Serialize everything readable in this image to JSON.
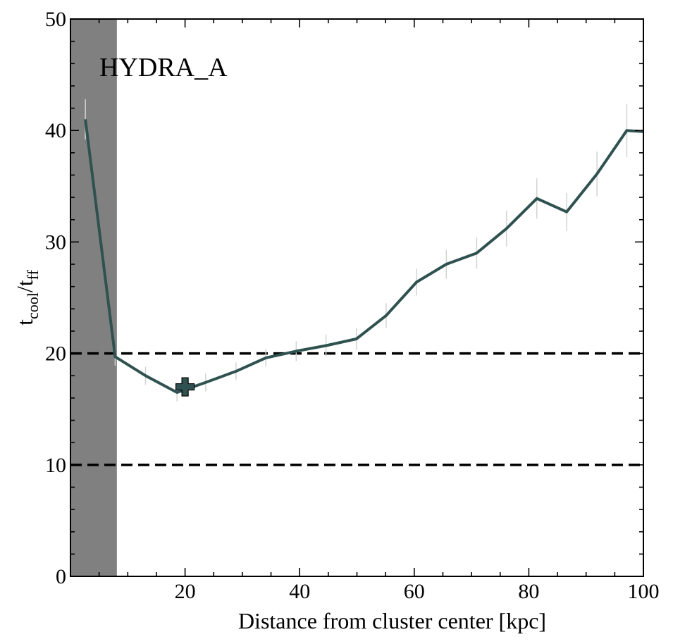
{
  "chart_data": {
    "type": "line",
    "title": "",
    "annotation": "HYDRA_A",
    "xlabel": "Distance from cluster center [kpc]",
    "ylabel": {
      "main": "t",
      "sub1": "cool",
      "slash": "/t",
      "sub2": "ff"
    },
    "xlim": [
      0,
      100
    ],
    "ylim": [
      0,
      50
    ],
    "xticks": [
      20,
      40,
      60,
      80,
      100
    ],
    "yticks": [
      0,
      10,
      20,
      30,
      40,
      50
    ],
    "xticks_minor": [
      5,
      10,
      15,
      25,
      30,
      35,
      45,
      50,
      55,
      65,
      70,
      75,
      85,
      90,
      95
    ],
    "yticks_minor": [
      2,
      4,
      6,
      8,
      12,
      14,
      16,
      18,
      22,
      24,
      26,
      28,
      32,
      34,
      36,
      38,
      42,
      44,
      46,
      48
    ],
    "grid": false,
    "shaded_region": {
      "x0": 0,
      "x1": 8.1,
      "color": "#808080"
    },
    "hlines": [
      {
        "y": 20,
        "style": "dashed",
        "color": "#000000"
      },
      {
        "y": 10,
        "style": "dashed",
        "color": "#000000"
      }
    ],
    "series": [
      {
        "color": "#2f5250",
        "x": [
          2.6,
          7.8,
          13.1,
          18.6,
          23.6,
          28.9,
          34.1,
          39.4,
          44.6,
          49.9,
          55.1,
          60.4,
          65.6,
          70.9,
          76.1,
          81.4,
          86.6,
          91.9,
          97.1,
          100
        ],
        "y": [
          41.0,
          19.7,
          18.0,
          16.5,
          17.4,
          18.4,
          19.6,
          20.2,
          20.7,
          21.3,
          23.4,
          26.4,
          28.0,
          29.0,
          31.2,
          33.9,
          32.7,
          36.1,
          40.0,
          39.9
        ],
        "err": [
          1.8,
          0.8,
          0.8,
          0.8,
          0.8,
          0.8,
          0.8,
          0.9,
          1.0,
          1.0,
          1.1,
          1.2,
          1.3,
          1.4,
          1.6,
          1.8,
          1.7,
          2.0,
          2.4,
          0
        ]
      }
    ],
    "marker": {
      "x": 20.0,
      "y": 17.0,
      "shape": "plus-filled",
      "color": "#2f5250"
    }
  }
}
